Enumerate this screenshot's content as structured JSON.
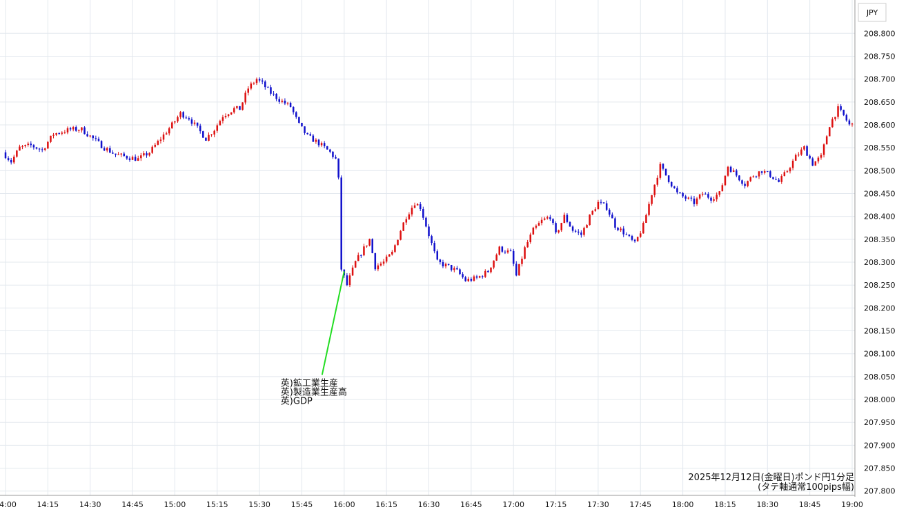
{
  "chart_data": {
    "type": "candlestick",
    "currency": "JPY",
    "caption_line1": "2025年12月12日(金曜日)ポンド円1分足",
    "caption_line2": "(タテ軸通常100pips幅)",
    "ylim": [
      207.78,
      208.86
    ],
    "y_ticks": [
      "208.800",
      "208.750",
      "208.700",
      "208.650",
      "208.600",
      "208.550",
      "208.500",
      "208.450",
      "208.400",
      "208.350",
      "208.300",
      "208.250",
      "208.200",
      "208.150",
      "208.100",
      "208.050",
      "208.000",
      "207.950",
      "207.900",
      "207.850",
      "207.800"
    ],
    "x_ticks": [
      "14:00",
      "14:15",
      "14:30",
      "14:45",
      "15:00",
      "15:15",
      "15:30",
      "15:45",
      "16:00",
      "16:15",
      "16:30",
      "16:45",
      "17:00",
      "17:15",
      "17:30",
      "17:45",
      "18:00",
      "18:15",
      "18:30",
      "18:45",
      "19:00"
    ],
    "time_range": [
      "14:00",
      "19:00"
    ],
    "annotation": {
      "time": "16:00",
      "price": 208.28,
      "lines": [
        "英)鉱工業生産",
        "英)製造業生産高",
        "英)GDP"
      ]
    },
    "up_color": "#dd1111",
    "down_color": "#1111cc",
    "annotation_line_color": "#22dd22",
    "path": [
      [
        "14:00",
        208.54
      ],
      [
        "14:03",
        208.52
      ],
      [
        "14:06",
        208.55
      ],
      [
        "14:10",
        208.555
      ],
      [
        "14:14",
        208.545
      ],
      [
        "14:18",
        208.58
      ],
      [
        "14:24",
        208.59
      ],
      [
        "14:28",
        208.59
      ],
      [
        "14:32",
        208.57
      ],
      [
        "14:36",
        208.55
      ],
      [
        "14:40",
        208.535
      ],
      [
        "14:44",
        208.53
      ],
      [
        "14:48",
        208.525
      ],
      [
        "14:52",
        208.54
      ],
      [
        "14:56",
        208.57
      ],
      [
        "15:00",
        208.6
      ],
      [
        "15:03",
        208.625
      ],
      [
        "15:06",
        208.615
      ],
      [
        "15:10",
        208.585
      ],
      [
        "15:12",
        208.57
      ],
      [
        "15:15",
        208.59
      ],
      [
        "15:18",
        208.62
      ],
      [
        "15:22",
        208.635
      ],
      [
        "15:24",
        208.635
      ],
      [
        "15:27",
        208.68
      ],
      [
        "15:30",
        208.7
      ],
      [
        "15:32",
        208.69
      ],
      [
        "15:35",
        208.67
      ],
      [
        "15:38",
        208.655
      ],
      [
        "15:42",
        208.64
      ],
      [
        "15:45",
        208.6
      ],
      [
        "15:48",
        208.575
      ],
      [
        "15:52",
        208.56
      ],
      [
        "15:56",
        208.54
      ],
      [
        "15:58",
        208.525
      ],
      [
        "15:59",
        208.48
      ],
      [
        "16:00",
        208.285
      ],
      [
        "16:02",
        208.25
      ],
      [
        "16:05",
        208.3
      ],
      [
        "16:08",
        208.33
      ],
      [
        "16:10",
        208.35
      ],
      [
        "16:12",
        208.29
      ],
      [
        "16:15",
        208.3
      ],
      [
        "16:18",
        208.32
      ],
      [
        "16:21",
        208.37
      ],
      [
        "16:23",
        208.4
      ],
      [
        "16:26",
        208.43
      ],
      [
        "16:28",
        208.42
      ],
      [
        "16:31",
        208.36
      ],
      [
        "16:34",
        208.3
      ],
      [
        "16:38",
        208.29
      ],
      [
        "16:41",
        208.28
      ],
      [
        "16:44",
        208.26
      ],
      [
        "16:48",
        208.265
      ],
      [
        "16:52",
        208.28
      ],
      [
        "16:56",
        208.33
      ],
      [
        "17:00",
        208.32
      ],
      [
        "17:02",
        208.27
      ],
      [
        "17:05",
        208.33
      ],
      [
        "17:08",
        208.37
      ],
      [
        "17:11",
        208.39
      ],
      [
        "17:14",
        208.4
      ],
      [
        "17:16",
        208.36
      ],
      [
        "17:19",
        208.4
      ],
      [
        "17:22",
        208.37
      ],
      [
        "17:25",
        208.36
      ],
      [
        "17:28",
        208.4
      ],
      [
        "17:31",
        208.43
      ],
      [
        "17:34",
        208.42
      ],
      [
        "17:37",
        208.38
      ],
      [
        "17:40",
        208.365
      ],
      [
        "17:44",
        208.34
      ],
      [
        "17:47",
        208.38
      ],
      [
        "17:50",
        208.45
      ],
      [
        "17:53",
        208.51
      ],
      [
        "17:56",
        208.48
      ],
      [
        "17:59",
        208.45
      ],
      [
        "18:02",
        208.44
      ],
      [
        "18:05",
        208.43
      ],
      [
        "18:08",
        208.45
      ],
      [
        "18:11",
        208.44
      ],
      [
        "18:14",
        208.45
      ],
      [
        "18:17",
        208.51
      ],
      [
        "18:20",
        208.49
      ],
      [
        "18:23",
        208.47
      ],
      [
        "18:26",
        208.49
      ],
      [
        "18:29",
        208.5
      ],
      [
        "18:32",
        208.49
      ],
      [
        "18:35",
        208.475
      ],
      [
        "18:38",
        208.5
      ],
      [
        "18:41",
        208.53
      ],
      [
        "18:44",
        208.55
      ],
      [
        "18:47",
        208.515
      ],
      [
        "18:50",
        208.53
      ],
      [
        "18:53",
        208.6
      ],
      [
        "18:56",
        208.635
      ],
      [
        "18:58",
        208.62
      ],
      [
        "19:00",
        208.6
      ]
    ]
  }
}
